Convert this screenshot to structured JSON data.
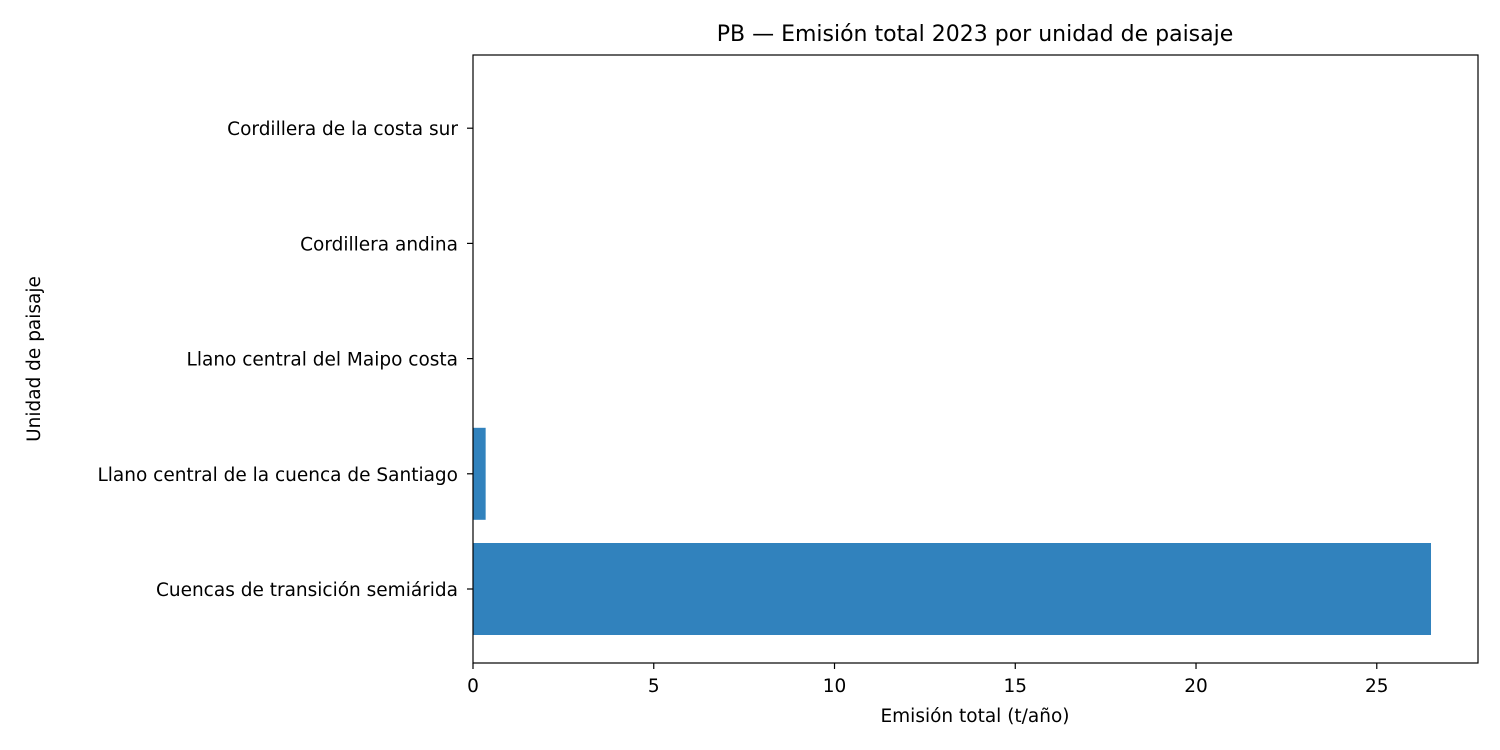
{
  "chart_data": {
    "type": "bar",
    "orientation": "horizontal",
    "title": "PB — Emisión total 2023 por unidad de paisaje",
    "xlabel": "Emisión total (t/año)",
    "ylabel": "Unidad de paisaje",
    "categories": [
      "Cuencas de transición semiárida",
      "Llano central de la cuenca de Santiago",
      "Llano central del Maipo costa",
      "Cordillera andina",
      "Cordillera de la costa sur"
    ],
    "values": [
      26.5,
      0.35,
      0.005,
      0.0,
      0.0
    ],
    "xlim": [
      0,
      27.8
    ],
    "xticks": [
      "0",
      "5",
      "10",
      "15",
      "20",
      "25"
    ],
    "grid": false,
    "bar_color": "#3182bd"
  }
}
